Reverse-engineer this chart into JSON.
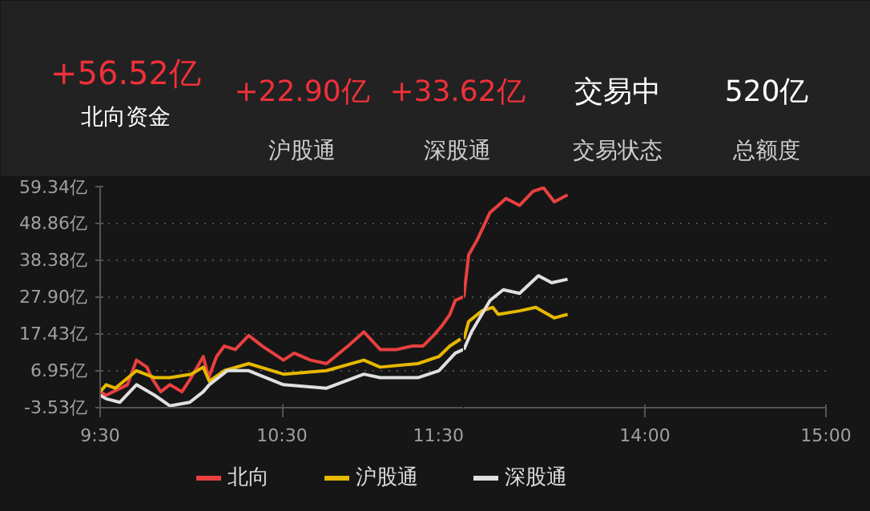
{
  "chart_data": [
    {
      "type": "line",
      "annotations": [
        "+56.52亿",
        "北向资金",
        "+22.90亿",
        "沪股通",
        "+33.62亿",
        "深股通",
        "交易中",
        "交易状态",
        "520亿",
        "总额度"
      ],
      "xlim": [
        9.5,
        11.5
      ],
      "xticks": [
        {
          "value": 9.5,
          "label": "9:30"
        },
        {
          "value": 10.5,
          "label": "10:30"
        },
        {
          "value": 11.5,
          "label": "11:30"
        }
      ],
      "ylim": [
        -3.53,
        59.34
      ],
      "yticks": [
        {
          "value": -3.53,
          "label": "-3.53亿"
        },
        {
          "value": 6.95,
          "label": "6.95亿"
        },
        {
          "value": 17.43,
          "label": "17.43亿"
        },
        {
          "value": 27.9,
          "label": "27.90亿"
        },
        {
          "value": 38.38,
          "label": "38.38亿"
        },
        {
          "value": 48.86,
          "label": "48.86亿"
        },
        {
          "value": 59.34,
          "label": "59.34亿"
        }
      ],
      "grid": "y",
      "legend": "bottom",
      "series": [
        {
          "name": "北向",
          "color": "#e8403f",
          "x": [
            9.5,
            9.533,
            9.65,
            9.7,
            9.757,
            9.783,
            9.833,
            9.883,
            9.95,
            10,
            10.067,
            10.097,
            10.14,
            10.183,
            10.243,
            10.317,
            10.392,
            10.508,
            10.567,
            10.657,
            10.745,
            10.863,
            10.95,
            11.04,
            11.128,
            11.217,
            11.275,
            11.333,
            11.383,
            11.423,
            11.453,
            11.497
          ],
          "values": [
            1,
            0,
            3,
            10,
            8,
            5,
            1,
            3,
            1,
            5,
            11,
            5,
            11,
            14,
            13,
            17,
            14,
            10,
            12,
            10,
            9,
            14,
            18,
            13,
            13,
            14,
            14,
            17,
            20,
            23,
            27,
            28
          ]
        },
        {
          "name": "沪股通",
          "color": "#e6b800",
          "x": [
            9.5,
            9.533,
            9.583,
            9.7,
            9.8,
            9.883,
            10,
            10.067,
            10.1,
            10.183,
            10.317,
            10.508,
            10.745,
            10.95,
            11.04,
            11.247,
            11.363,
            11.423,
            11.482
          ],
          "values": [
            1,
            3,
            2,
            7,
            5,
            5,
            6,
            8,
            4,
            7,
            9,
            6,
            7,
            10,
            8,
            9,
            11,
            14,
            16
          ]
        },
        {
          "name": "深股通",
          "color": "#e0e0e0",
          "x": [
            9.5,
            9.533,
            9.608,
            9.7,
            9.8,
            9.883,
            9.993,
            10.067,
            10.1,
            10.2,
            10.317,
            10.508,
            10.745,
            10.95,
            11.04,
            11.247,
            11.363,
            11.453,
            11.497
          ],
          "values": [
            0,
            -1,
            -2,
            3,
            0,
            -3,
            -2,
            1,
            3,
            7,
            7,
            3,
            2,
            6,
            5,
            5,
            7,
            12,
            13
          ]
        }
      ]
    },
    {
      "type": "line",
      "xlim": [
        13,
        15
      ],
      "xticks": [
        {
          "value": 14,
          "label": "14:00"
        },
        {
          "value": 15,
          "label": "15:00"
        }
      ],
      "ylim": [
        -3.53,
        59.34
      ],
      "yticks": [
        -3.53,
        6.95,
        17.43,
        27.9,
        38.38,
        48.86,
        59.34
      ],
      "tick_labels": "x",
      "grid": "y",
      "series": [
        {
          "color": "#e8403f",
          "x": [
            13,
            13.027,
            13.072,
            13.145,
            13.19,
            13.233,
            13.308,
            13.382,
            13.44,
            13.5,
            13.573
          ],
          "values": [
            28,
            40,
            44,
            52,
            54,
            56,
            54,
            58,
            59,
            55,
            57
          ]
        },
        {
          "color": "#e6b800",
          "x": [
            13,
            13.027,
            13.1,
            13.16,
            13.19,
            13.308,
            13.397,
            13.5,
            13.573
          ],
          "values": [
            16,
            21,
            24,
            25,
            23,
            24,
            25,
            22,
            23
          ]
        },
        {
          "color": "#e0e0e0",
          "x": [
            13,
            13.042,
            13.145,
            13.218,
            13.308,
            13.412,
            13.485,
            13.573
          ],
          "values": [
            13,
            18,
            27,
            30,
            29,
            34,
            32,
            33
          ]
        }
      ]
    }
  ]
}
